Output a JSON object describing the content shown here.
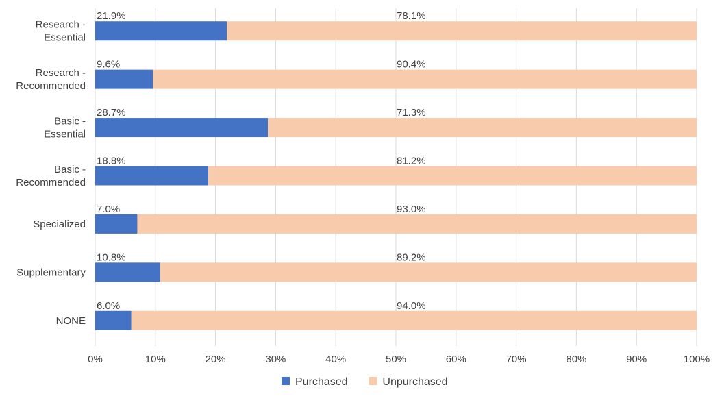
{
  "chart_data": {
    "type": "bar",
    "orientation": "horizontal",
    "stacked": "percent",
    "categories": [
      [
        "Research -",
        "Essential"
      ],
      [
        "Research -",
        "Recommended"
      ],
      [
        "Basic -",
        "Essential"
      ],
      [
        "Basic -",
        "Recommended"
      ],
      [
        "Specialized"
      ],
      [
        "Supplementary"
      ],
      [
        "NONE"
      ]
    ],
    "series": [
      {
        "name": "Purchased",
        "color": "#4472C4",
        "values": [
          21.9,
          9.6,
          28.7,
          18.8,
          7.0,
          10.8,
          6.0
        ],
        "labels": [
          "21.9%",
          "9.6%",
          "28.7%",
          "18.8%",
          "7.0%",
          "10.8%",
          "6.0%"
        ]
      },
      {
        "name": "Unpurchased",
        "color": "#F8CBAD",
        "values": [
          78.1,
          90.4,
          71.3,
          81.2,
          93.0,
          89.2,
          94.0
        ],
        "labels": [
          "78.1%",
          "90.4%",
          "71.3%",
          "81.2%",
          "93.0%",
          "89.2%",
          "94.0%"
        ]
      }
    ],
    "xlim": [
      0,
      100
    ],
    "xticks": [
      "0%",
      "10%",
      "20%",
      "30%",
      "40%",
      "50%",
      "60%",
      "70%",
      "80%",
      "90%",
      "100%"
    ],
    "grid": true,
    "legend": "bottom"
  }
}
